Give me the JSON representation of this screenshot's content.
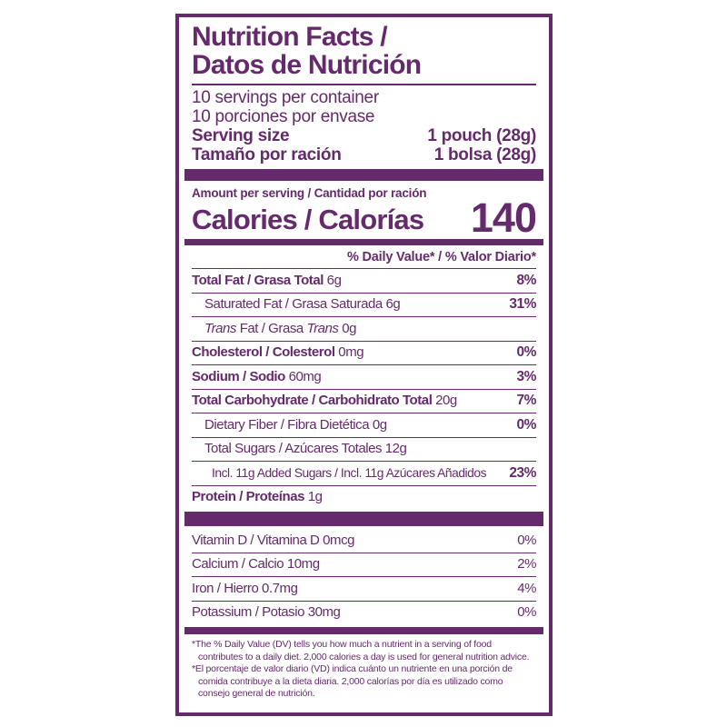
{
  "colors": {
    "purple": "#652A6B",
    "background": "#FFFFFF"
  },
  "header": {
    "title_line1": "Nutrition Facts /",
    "title_line2": "Datos de Nutrición",
    "servings_en": "10 servings per container",
    "servings_es": "10 porciones por envase",
    "serving_size_rows": [
      {
        "label": "Serving size",
        "value": "1 pouch (28g)"
      },
      {
        "label": "Tamaño por ración",
        "value": "1 bolsa (28g)"
      }
    ]
  },
  "calories": {
    "amount_per_serving": "Amount per serving / Cantidad por ración",
    "label": "Calories / Calorías",
    "value": "140"
  },
  "daily_value_header": "% Daily Value* / % Valor Diario*",
  "nutrients": [
    {
      "bold": "Total Fat / Grasa Total",
      "rest": " 6g",
      "dv": "8%"
    },
    {
      "text": "Saturated Fat / Grasa Saturada 6g",
      "dv": "31%"
    },
    {
      "italic1": "Trans",
      "mid": " Fat / Grasa ",
      "italic2": "Trans",
      "end": " 0g",
      "dv": ""
    },
    {
      "bold": "Cholesterol / Colesterol",
      "rest": " 0mg",
      "dv": "0%"
    },
    {
      "bold": "Sodium / Sodio",
      "rest": " 60mg",
      "dv": "3%"
    },
    {
      "bold": "Total Carbohydrate / Carbohidrato Total",
      "rest": " 20g",
      "dv": "7%"
    },
    {
      "text": "Dietary Fiber / Fibra Dietética 0g",
      "dv": "0%"
    },
    {
      "text": "Total Sugars / Azúcares Totales 12g",
      "dv": ""
    },
    {
      "text": "Incl. 11g Added Sugars / Incl. 11g Azúcares Añadidos",
      "dv": "23%"
    },
    {
      "bold": "Protein / Proteínas",
      "rest": " 1g",
      "dv": ""
    }
  ],
  "vitamins": [
    {
      "text": "Vitamin D / Vitamina D 0mcg",
      "dv": "0%"
    },
    {
      "text": "Calcium / Calcio 10mg",
      "dv": "2%"
    },
    {
      "text": "Iron / Hierro 0.7mg",
      "dv": "4%"
    },
    {
      "text": "Potassium / Potasio 30mg",
      "dv": "0%"
    }
  ],
  "footnotes": {
    "en": "*The % Daily Value (DV) tells you how much a nutrient in a serving of food contributes to a daily diet. 2,000 calories a day is used for general nutrition advice.",
    "es": "*El porcentaje de valor diario (VD) indica cuánto un nutriente en una porción de comida contribuye a la dieta diaria. 2,000 calorías por día es utilizado como consejo general de nutrición."
  }
}
